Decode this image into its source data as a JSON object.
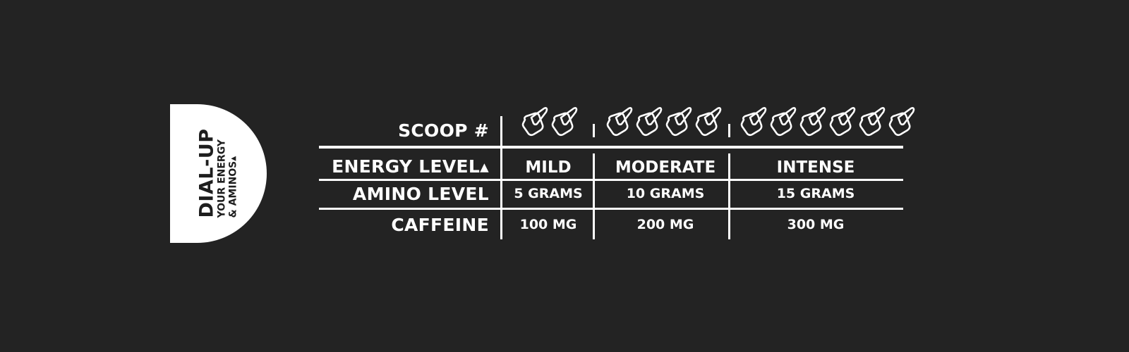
{
  "badge": {
    "title": "DIAL-UP",
    "subtitle_line1": "YOUR ENERGY",
    "subtitle_line2": "& AMINOS▴"
  },
  "table": {
    "row_labels": {
      "scoop": "SCOOP #",
      "energy": "ENERGY LEVEL▴",
      "amino": "AMINO LEVEL",
      "caffeine": "CAFFEINE"
    },
    "columns": [
      {
        "scoops": 2,
        "energy": "MILD",
        "amino": "5 GRAMS",
        "caffeine": "100 MG"
      },
      {
        "scoops": 4,
        "energy": "MODERATE",
        "amino": "10 GRAMS",
        "caffeine": "200 MG"
      },
      {
        "scoops": 6,
        "energy": "INTENSE",
        "amino": "15 GRAMS",
        "caffeine": "300 MG"
      }
    ],
    "scoop_icon": "scoop-icon"
  },
  "colors": {
    "background": "#232323",
    "foreground": "#ffffff"
  }
}
